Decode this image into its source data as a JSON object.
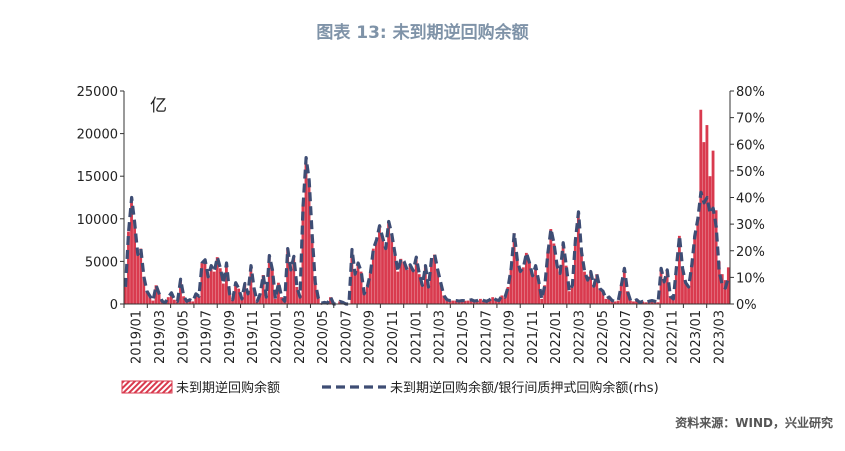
{
  "title": "图表 13: 未到期逆回购余额",
  "source": "资料来源：WIND，兴业研究",
  "colors": {
    "bar": "#d93a4e",
    "line": "#3e4d74",
    "title": "#7f93a8"
  },
  "chart_data": {
    "type": "bar",
    "unit_label": "亿",
    "y_left": {
      "min": 0,
      "max": 25000,
      "ticks": [
        "0",
        "5000",
        "10000",
        "15000",
        "20000",
        "25000"
      ]
    },
    "y_right": {
      "min": 0,
      "max": 80,
      "ticks": [
        "0%",
        "10%",
        "20%",
        "30%",
        "40%",
        "50%",
        "60%",
        "70%",
        "80%"
      ]
    },
    "x_ticks": [
      "2019/01",
      "2019/03",
      "2019/05",
      "2019/07",
      "2019/09",
      "2019/11",
      "2020/01",
      "2020/03",
      "2020/05",
      "2020/07",
      "2020/09",
      "2020/11",
      "2021/01",
      "2021/03",
      "2021/05",
      "2021/07",
      "2021/09",
      "2021/11",
      "2022/01",
      "2022/03",
      "2022/05",
      "2022/07",
      "2022/09",
      "2022/11",
      "2023/01",
      "2023/03"
    ],
    "series": [
      {
        "name": "未到期逆回购余额",
        "type": "bar",
        "axis": "left",
        "values": [
          2000,
          8500,
          12500,
          9500,
          5800,
          6500,
          3200,
          1500,
          900,
          400,
          2200,
          1200,
          300,
          150,
          800,
          1300,
          500,
          300,
          2900,
          900,
          300,
          500,
          300,
          1200,
          900,
          4800,
          5200,
          3200,
          4500,
          3800,
          5500,
          4200,
          2400,
          4800,
          1200,
          500,
          2500,
          1800,
          600,
          2400,
          1200,
          4500,
          1800,
          300,
          1200,
          3400,
          800,
          5700,
          4000,
          600,
          2500,
          800,
          300,
          6500,
          4000,
          5600,
          2000,
          800,
          11500,
          17200,
          14500,
          8000,
          2500,
          700,
          100,
          200,
          100,
          800,
          0,
          0,
          300,
          200,
          0,
          0,
          6400,
          3500,
          4800,
          3800,
          1200,
          2000,
          3600,
          6500,
          7500,
          9200,
          7800,
          6500,
          9700,
          8200,
          6000,
          3800,
          5300,
          5000,
          4000,
          4600,
          3900,
          5500,
          3500,
          2200,
          4500,
          2000,
          5400,
          5800,
          4000,
          2500,
          1000,
          500,
          400,
          400,
          400,
          350,
          400,
          380,
          400,
          500,
          350,
          400,
          600,
          400,
          300,
          500,
          800,
          500,
          400,
          1000,
          800,
          2000,
          4200,
          8300,
          5200,
          3800,
          4300,
          6000,
          4800,
          3300,
          4500,
          2700,
          600,
          2200,
          6000,
          8800,
          7100,
          4500,
          3600,
          7200,
          4500,
          1500,
          2200,
          7500,
          10800,
          6100,
          3800,
          2800,
          3800,
          2100,
          3500,
          1800,
          1500,
          600,
          800,
          400,
          300,
          400,
          2200,
          4200,
          1500,
          400,
          300,
          500,
          200,
          300,
          200,
          300,
          400,
          300,
          200,
          4200,
          2600,
          4000,
          900,
          600,
          4300,
          8000,
          4200,
          2500,
          2000,
          4500,
          8000,
          10000,
          22800,
          19000,
          21000,
          15000,
          18000,
          11000,
          5000,
          3500,
          2800,
          4300
        ]
      },
      {
        "name": "未到期逆回购余额/银行间质押式回购余额(rhs)",
        "type": "line",
        "axis": "right",
        "values": [
          6.4,
          27.2,
          40,
          30.4,
          18.6,
          20.8,
          10.2,
          4.8,
          2.9,
          1.3,
          7,
          3.8,
          1,
          0.5,
          2.6,
          4.2,
          1.6,
          1,
          9.3,
          2.9,
          1,
          1.6,
          1,
          3.8,
          2.9,
          15.4,
          16.6,
          10.2,
          14.4,
          12.2,
          17.6,
          13.4,
          7.7,
          15.4,
          3.8,
          1.6,
          8,
          5.8,
          1.9,
          7.7,
          3.8,
          14.4,
          5.8,
          1,
          3.8,
          10.9,
          2.6,
          18.2,
          12.8,
          1.9,
          8,
          2.6,
          1,
          20.8,
          12.8,
          17.9,
          6.4,
          2.6,
          36.8,
          55,
          46.4,
          25.6,
          8,
          2.2,
          0.3,
          0.6,
          0.3,
          2.6,
          0,
          0,
          1,
          0.6,
          0,
          0,
          20.5,
          11.2,
          15.4,
          12.2,
          3.8,
          6.4,
          11.5,
          20.8,
          24,
          29.4,
          25,
          20.8,
          31,
          26.2,
          19.2,
          12.2,
          17,
          16,
          12.8,
          14.7,
          12.5,
          17.6,
          11.2,
          7,
          14.4,
          6.4,
          17.3,
          18.6,
          12.8,
          8,
          3.2,
          1.6,
          1.3,
          1.3,
          1.3,
          1.1,
          1.3,
          1.2,
          1.3,
          1.6,
          1.1,
          1.3,
          1.9,
          1.3,
          1,
          1.6,
          2.6,
          1.6,
          1.3,
          3.2,
          2.6,
          6.4,
          13.4,
          26.6,
          16.6,
          12.2,
          13.8,
          19.2,
          15.4,
          10.6,
          14.4,
          8.6,
          1.9,
          7,
          19.2,
          28.2,
          22.7,
          14.4,
          11.5,
          23,
          14.4,
          4.8,
          7,
          24,
          34.6,
          19.5,
          12.2,
          9,
          12.2,
          6.7,
          11.2,
          5.8,
          4.8,
          1.9,
          2.6,
          1.3,
          1,
          1.3,
          7,
          13.4,
          4.8,
          1.3,
          1,
          1.6,
          0.6,
          1,
          0.6,
          1,
          1.3,
          1,
          0.6,
          13.4,
          8.3,
          12.8,
          2.9,
          1.9,
          13.8,
          25.6,
          13.4,
          8,
          6.4,
          14.4,
          25.6,
          32,
          42,
          38,
          40,
          34,
          36,
          29,
          12,
          7,
          6,
          10
        ]
      }
    ]
  }
}
